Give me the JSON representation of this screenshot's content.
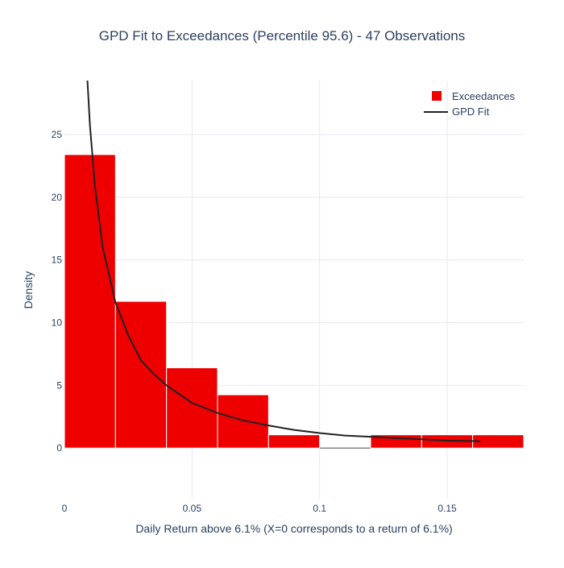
{
  "chart_data": {
    "type": "bar",
    "title": "GPD Fit to Exceedances (Percentile 95.6) - 47 Observations",
    "xlabel": "Daily Return above 6.1% (X=0 corresponds to a return of 6.1%)",
    "ylabel": "Density",
    "xlim": [
      0,
      0.18
    ],
    "ylim": [
      -4.1,
      29.3
    ],
    "x_ticks": [
      0,
      0.05,
      0.1,
      0.15
    ],
    "x_tick_labels": [
      "0",
      "0.05",
      "0.1",
      "0.15"
    ],
    "y_ticks": [
      0,
      5,
      10,
      15,
      20,
      25
    ],
    "y_tick_labels": [
      "0",
      "5",
      "10",
      "15",
      "20",
      "25"
    ],
    "grid": true,
    "legend_position": "top-right",
    "colors": {
      "bars": "#ee0000",
      "fit_line": "#222222",
      "grid": "#e6e9ef",
      "text": "#2a3f5f"
    },
    "series": [
      {
        "name": "Exceedances",
        "type": "histogram",
        "bins": [
          {
            "x0": 0.0,
            "x1": 0.02,
            "y": 23.4
          },
          {
            "x0": 0.02,
            "x1": 0.04,
            "y": 11.7
          },
          {
            "x0": 0.04,
            "x1": 0.06,
            "y": 6.4
          },
          {
            "x0": 0.06,
            "x1": 0.08,
            "y": 4.25
          },
          {
            "x0": 0.08,
            "x1": 0.1,
            "y": 1.06
          },
          {
            "x0": 0.1,
            "x1": 0.12,
            "y": 0
          },
          {
            "x0": 0.12,
            "x1": 0.14,
            "y": 1.06
          },
          {
            "x0": 0.14,
            "x1": 0.16,
            "y": 1.06
          },
          {
            "x0": 0.16,
            "x1": 0.18,
            "y": 1.06
          }
        ]
      },
      {
        "name": "GPD Fit",
        "type": "line",
        "x": [
          0.009,
          0.01,
          0.012,
          0.015,
          0.02,
          0.025,
          0.03,
          0.035,
          0.04,
          0.05,
          0.06,
          0.07,
          0.08,
          0.09,
          0.1,
          0.11,
          0.12,
          0.13,
          0.14,
          0.15,
          0.163
        ],
        "y": [
          29.3,
          25.7,
          20.8,
          16.0,
          11.6,
          9.0,
          7.0,
          5.9,
          5.0,
          3.6,
          2.8,
          2.2,
          1.8,
          1.45,
          1.2,
          1.0,
          0.9,
          0.8,
          0.7,
          0.6,
          0.55
        ]
      }
    ]
  }
}
